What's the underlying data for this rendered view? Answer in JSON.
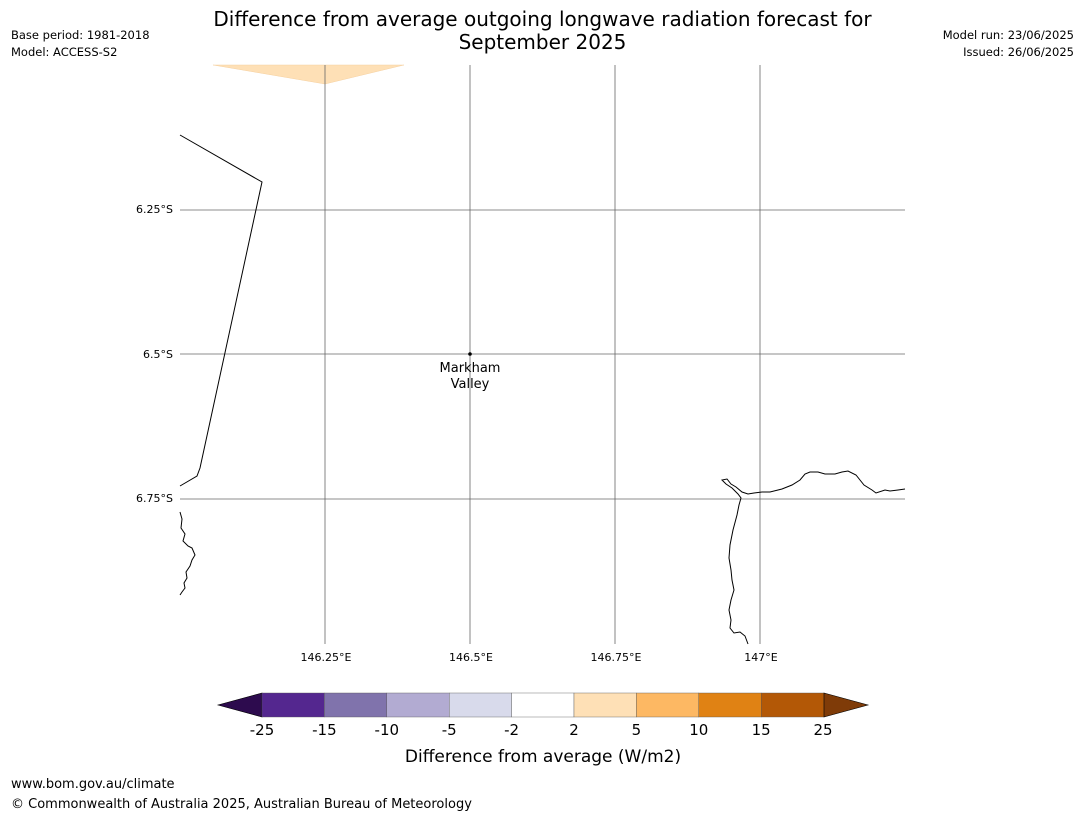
{
  "title": {
    "line1": "Difference from average outgoing longwave radiation forecast for",
    "line2": "September 2025"
  },
  "meta_left": {
    "base_period": "Base period: 1981-2018",
    "model": "Model: ACCESS-S2"
  },
  "meta_right": {
    "model_run": "Model run: 23/06/2025",
    "issued": "Issued: 26/06/2025"
  },
  "map": {
    "lat_labels": [
      "6.25°S",
      "6.5°S",
      "6.75°S"
    ],
    "lon_labels": [
      "146.25°E",
      "146.5°E",
      "146.75°E",
      "147°E"
    ],
    "place": {
      "name_line1": "Markham",
      "name_line2": "Valley"
    }
  },
  "colorbar": {
    "label": "Difference from average (W/m2)",
    "ticks": [
      "-25",
      "-15",
      "-10",
      "-5",
      "-2",
      "2",
      "5",
      "10",
      "15",
      "25"
    ],
    "colors": [
      "#2d0b4e",
      "#54278f",
      "#8073ac",
      "#b2abd2",
      "#d8daeb",
      "#ffffff",
      "#fee0b6",
      "#fdb863",
      "#e08214",
      "#b35806",
      "#7f3b08"
    ]
  },
  "footer": {
    "website": "www.bom.gov.au/climate",
    "copyright": "© Commonwealth of Australia 2025, Australian Bureau of Meteorology"
  }
}
